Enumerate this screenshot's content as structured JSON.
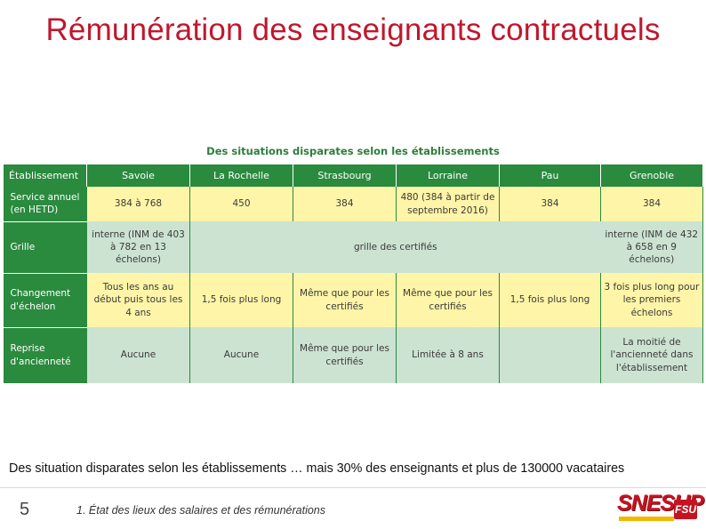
{
  "slide": {
    "title": "Rémunération des enseignants contractuels",
    "table_caption": "Des situations disparates selon les établissements",
    "summary": "Des situation disparates selon les établissements … mais 30% des enseignants et plus de 130000 vacataires",
    "page_number": "5",
    "footer_text": "1. État des lieux des salaires et des rémunérations",
    "logo": {
      "main": "SNESUP",
      "badge": "FSU"
    }
  },
  "table": {
    "headers": [
      "Établissement",
      "Savoie",
      "La Rochelle",
      "Strasbourg",
      "Lorraine",
      "Pau",
      "Grenoble"
    ],
    "rows": [
      {
        "label": "Service annuel (en HETD)",
        "cells": [
          "384 à 768",
          "450",
          "384",
          "480 (384 à partir de septembre 2016)",
          "384",
          "384"
        ]
      },
      {
        "label": "Grille",
        "savoie": "interne (INM de 403 à 782 en 13 échelons)",
        "merged": "grille des certifiés",
        "grenoble": "interne (INM de 432 à 658 en 9 échelons)"
      },
      {
        "label": "Changement d'échelon",
        "cells": [
          "Tous les ans au début puis tous les 4 ans",
          "1,5 fois plus long",
          "Même que pour les certifiés",
          "Même que pour les certifiés",
          "1,5 fois plus long",
          "3 fois plus long pour les premiers échelons"
        ]
      },
      {
        "label": "Reprise d'ancienneté",
        "cells": [
          "Aucune",
          "Aucune",
          "Même que pour les certifiés",
          "Limitée à 8 ans",
          "",
          "La moitié de l'ancienneté dans l'établissement"
        ]
      }
    ]
  },
  "colors": {
    "title_red": "#c0172d",
    "header_green": "#2a8a3e",
    "row_yellow": "#fff5a8",
    "row_green": "#cce3d2"
  }
}
